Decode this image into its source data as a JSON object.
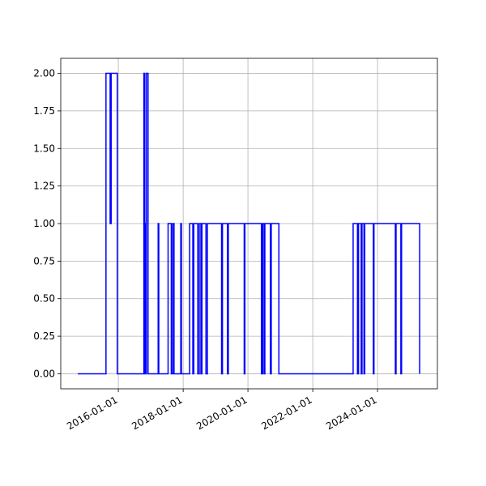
{
  "chart_data": {
    "type": "line",
    "step": "post",
    "color": "#0000ff",
    "grid": true,
    "x": [
      "2014-10-01",
      "2015-08-15",
      "2015-10-01",
      "2015-10-12",
      "2015-12-20",
      "2016-10-15",
      "2016-10-25",
      "2016-11-01",
      "2016-11-08",
      "2016-11-12",
      "2016-12-01",
      "2017-03-25",
      "2017-04-01",
      "2017-07-15",
      "2017-08-20",
      "2017-09-05",
      "2017-09-20",
      "2017-12-05",
      "2017-12-12",
      "2018-03-15",
      "2018-04-20",
      "2018-05-01",
      "2018-06-15",
      "2018-07-01",
      "2018-07-20",
      "2018-08-01",
      "2018-09-15",
      "2018-10-01",
      "2019-03-10",
      "2019-03-20",
      "2019-05-15",
      "2019-05-25",
      "2019-11-20",
      "2019-11-28",
      "2020-06-01",
      "2020-06-15",
      "2020-07-01",
      "2020-07-10",
      "2020-09-10",
      "2020-09-20",
      "2020-12-15",
      "2023-04-01",
      "2023-05-20",
      "2023-06-01",
      "2023-07-01",
      "2023-07-10",
      "2023-08-01",
      "2023-08-10",
      "2023-11-15",
      "2023-11-22",
      "2024-07-20",
      "2024-07-28",
      "2024-09-20",
      "2024-09-28",
      "2025-04-20"
    ],
    "values": [
      0,
      2,
      1,
      2,
      0,
      2,
      0,
      1,
      0,
      2,
      0,
      1,
      0,
      1,
      0,
      1,
      0,
      1,
      0,
      1,
      0,
      1,
      0,
      1,
      0,
      1,
      0,
      1,
      0,
      1,
      0,
      1,
      0,
      1,
      0,
      1,
      0,
      1,
      0,
      1,
      0,
      1,
      0,
      1,
      0,
      1,
      0,
      1,
      0,
      1,
      0,
      1,
      0,
      1,
      0
    ],
    "xlim": [
      "2014-03-23",
      "2025-11-06"
    ],
    "xticks": [
      "2016-01-01",
      "2018-01-01",
      "2020-01-01",
      "2022-01-01",
      "2024-01-01"
    ],
    "ylim": [
      -0.1,
      2.1
    ],
    "yticks": [
      {
        "value": 0,
        "label": "0.00"
      },
      {
        "value": 0.25,
        "label": "0.25"
      },
      {
        "value": 0.5,
        "label": "0.50"
      },
      {
        "value": 0.75,
        "label": "0.75"
      },
      {
        "value": 1,
        "label": "1.00"
      },
      {
        "value": 1.25,
        "label": "1.25"
      },
      {
        "value": 1.5,
        "label": "1.50"
      },
      {
        "value": 1.75,
        "label": "1.75"
      },
      {
        "value": 2,
        "label": "2.00"
      }
    ]
  }
}
